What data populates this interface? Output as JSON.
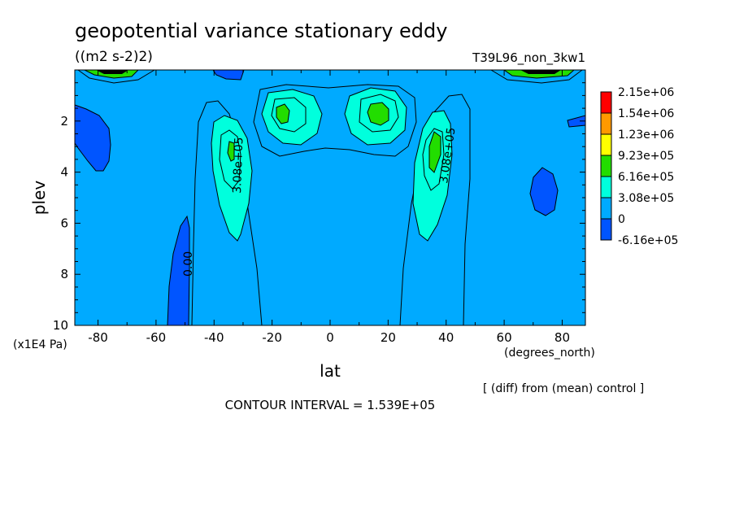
{
  "chart_data": {
    "type": "heatmap",
    "title": "geopotential variance stationary eddy",
    "units": "((m2 s-2)2)",
    "run_label": "T39L96_non_3kw1",
    "xlabel": "lat",
    "x_units": "(degrees_north)",
    "ylabel": "plev",
    "y_units": "(x1E4 Pa)",
    "x_ticks": [
      "-80",
      "-60",
      "-40",
      "-20",
      "0",
      "20",
      "40",
      "60",
      "80"
    ],
    "y_ticks": [
      "2",
      "4",
      "6",
      "8",
      "10"
    ],
    "xlim": [
      -88,
      88
    ],
    "ylim": [
      10,
      0
    ],
    "comparison_note": "[ (diff) from (mean) control ]",
    "contour_interval": "CONTOUR INTERVAL = 1.539E+05",
    "contour_labels": [
      "3.08e+05",
      "3.08e+05",
      "0.00"
    ],
    "colorbar": [
      {
        "label": "2.15e+06",
        "color": "#ff0000"
      },
      {
        "label": "1.54e+06",
        "color": "#ff9900"
      },
      {
        "label": "1.23e+06",
        "color": "#ffff00"
      },
      {
        "label": "9.23e+05",
        "color": "#22dd00"
      },
      {
        "label": "6.16e+05",
        "color": "#00ffdd"
      },
      {
        "label": "3.08e+05",
        "color": "#00aaff"
      },
      {
        "label": "0",
        "color": "#0055ff"
      },
      {
        "label": "-6.16e+05",
        "color": "#ffffff"
      }
    ],
    "background_color": "#00aaff"
  }
}
